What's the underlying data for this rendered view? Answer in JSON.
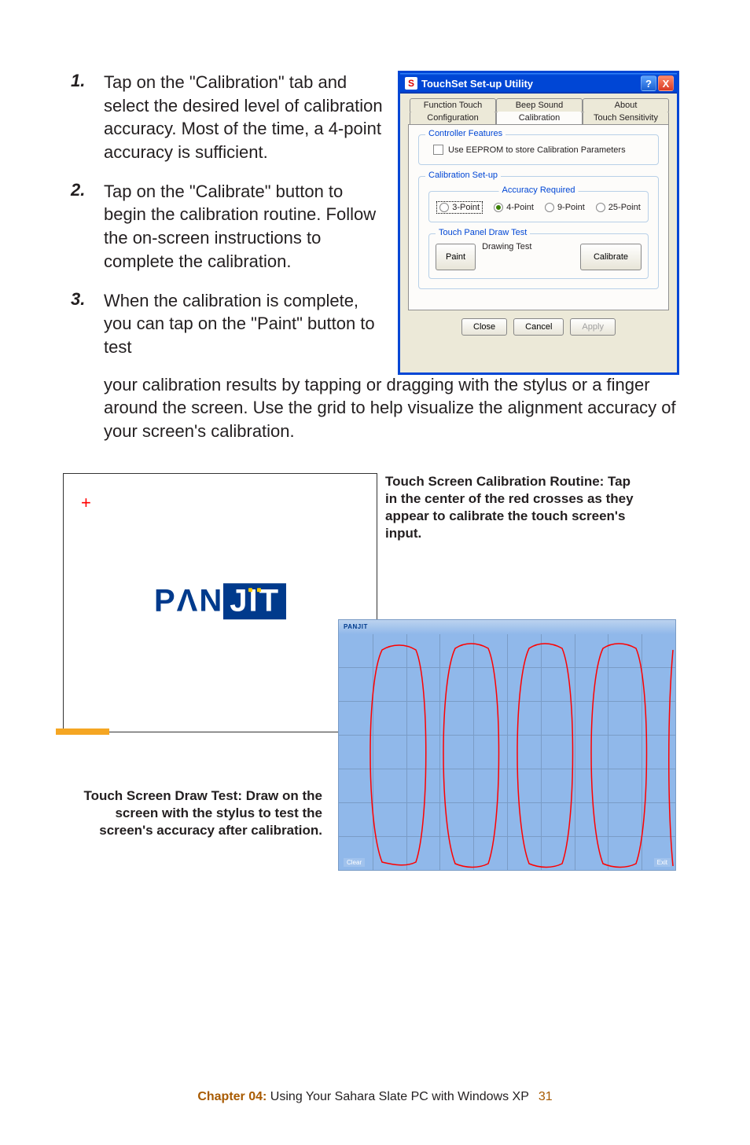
{
  "steps": [
    {
      "num": "1.",
      "text": "Tap on the \"Calibration\" tab and select the desired level of calibration accuracy. Most of the time, a 4-point accuracy is sufficient."
    },
    {
      "num": "2.",
      "text": "Tap on the \"Calibrate\" button to begin the calibration routine. Follow the on-screen instructions to complete the calibration."
    },
    {
      "num": "3.",
      "text": "When the calibration is complete, you can tap on the \"Paint\" button to test"
    }
  ],
  "step3_cont": "your calibration results by tapping or dragging with the stylus or a finger around the screen. Use the grid to help visualize the alignment accuracy of your screen's calibration.",
  "dialog": {
    "icon": "S",
    "title": "TouchSet Set-up Utility",
    "help": "?",
    "close": "X",
    "tabs_row1": [
      "Function Touch",
      "Beep Sound",
      "About"
    ],
    "tabs_row2": [
      "Configuration",
      "Calibration",
      "Touch Sensitivity"
    ],
    "controller_features": {
      "legend": "Controller Features",
      "checkbox": "Use EEPROM to store Calibration Parameters"
    },
    "calibration_setup": {
      "legend": "Calibration Set-up",
      "accuracy_legend": "Accuracy Required",
      "radios": [
        "3-Point",
        "4-Point",
        "9-Point",
        "25-Point"
      ],
      "selected_index": 1,
      "focused_index": 0
    },
    "touch_panel": {
      "legend": "Touch Panel Draw Test",
      "paint_btn": "Paint",
      "drawing_label": "Drawing Test",
      "calibrate_btn": "Calibrate"
    },
    "footer_btns": {
      "close": "Close",
      "cancel": "Cancel",
      "apply": "Apply"
    }
  },
  "calib_caption": "Touch Screen Calibration Routine: Tap in the center of the red crosses as they appear to calibrate the touch screen's input.",
  "draw_caption": "Touch Screen Draw Test: Draw on the screen with the stylus to test the screen's accuracy after calibration.",
  "panjit": {
    "pan": "PΛN",
    "jit": "JIT"
  },
  "paint": {
    "label": "PANJIT",
    "clear": "Clear",
    "exit": "Exit",
    "grid_cols": 10,
    "grid_rows": 7
  },
  "footer": {
    "chapter": "Chapter 04:",
    "title": " Using Your Sahara Slate PC with Windows XP",
    "page": "31"
  },
  "colors": {
    "titlebar": "#0046d5",
    "accent_orange": "#a85a00",
    "red": "#ff0000",
    "paint_bg": "#90b8ea",
    "grid": "#7a9cc6",
    "logo_blue": "#003a8c"
  }
}
